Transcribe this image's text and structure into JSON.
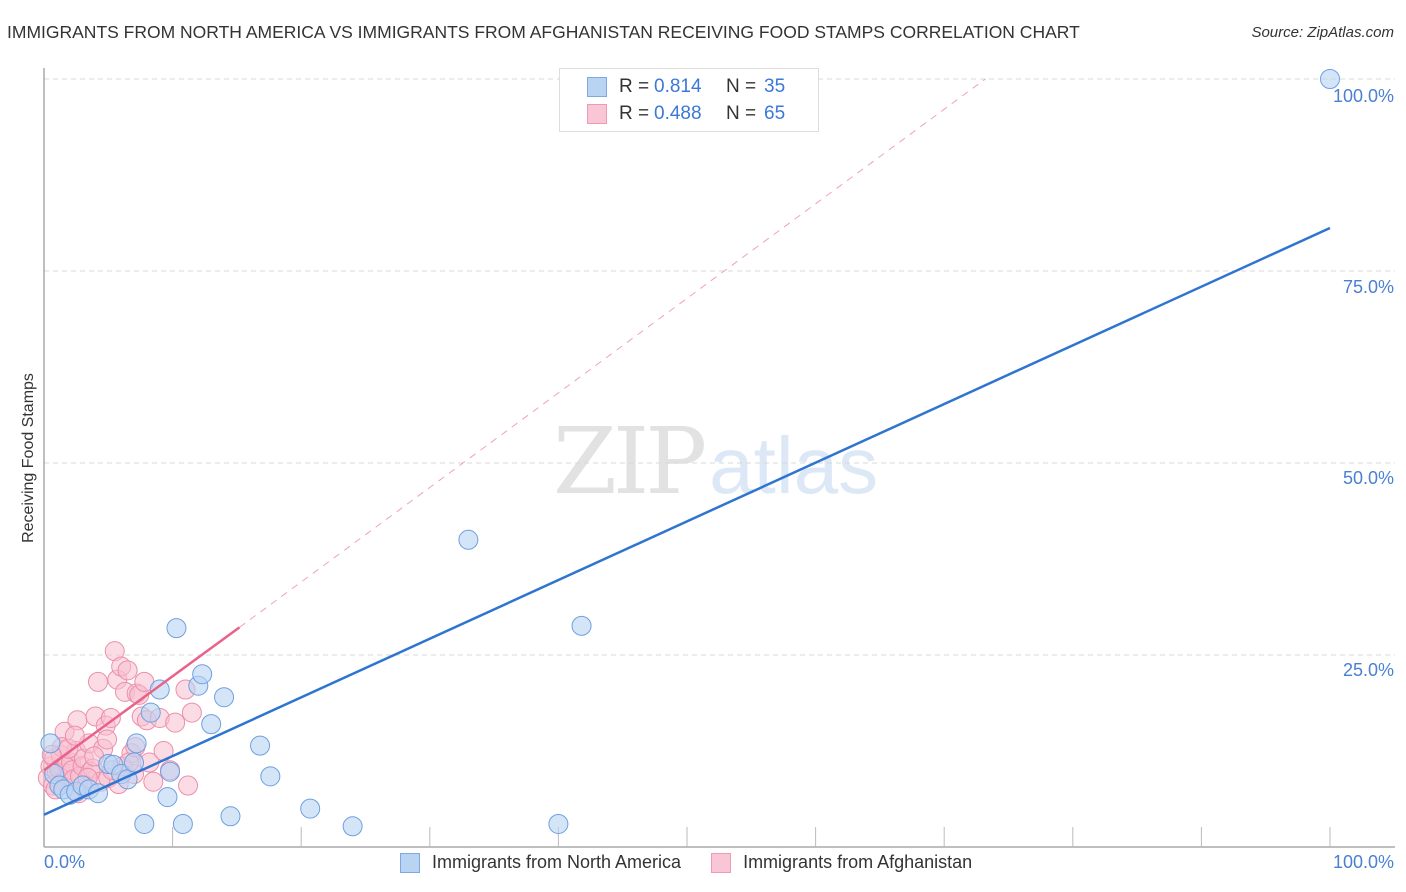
{
  "header": {
    "title": "IMMIGRANTS FROM NORTH AMERICA VS IMMIGRANTS FROM AFGHANISTAN RECEIVING FOOD STAMPS CORRELATION CHART",
    "source": "Source: ZipAtlas.com"
  },
  "watermark": {
    "zip": "ZIP",
    "atlas": "atlas"
  },
  "axes": {
    "ylabel": "Receiving Food Stamps",
    "y_ticks": [
      "100.0%",
      "75.0%",
      "50.0%",
      "25.0%"
    ],
    "x_ticks": [
      "0.0%",
      "100.0%"
    ]
  },
  "legend": {
    "series": [
      {
        "r_label": "R =",
        "r_value": "0.814",
        "n_label": "N =",
        "n_value": "35",
        "color": "#a8c8f0"
      },
      {
        "r_label": "R =",
        "r_value": "0.488",
        "n_label": "N =",
        "n_value": "65",
        "color": "#f7b8cb"
      }
    ]
  },
  "bottom_legend": [
    {
      "label": "Immigrants from North America",
      "color": "#a8c8f0"
    },
    {
      "label": "Immigrants from Afghanistan",
      "color": "#f7b8cb"
    }
  ],
  "colors": {
    "blue_fill": "#b9d3f3",
    "blue_stroke": "#6f9fe0",
    "blue_line": "#2f74d0",
    "pink_fill": "#f7bfd0",
    "pink_stroke": "#ec8fab",
    "pink_line": "#e8628a",
    "grid": "#d8d8d8",
    "tick_text": "#4a7fd4"
  },
  "chart_data": {
    "type": "scatter",
    "title": "IMMIGRANTS FROM NORTH AMERICA VS IMMIGRANTS FROM AFGHANISTAN RECEIVING FOOD STAMPS CORRELATION CHART",
    "xlabel": "",
    "ylabel": "Receiving Food Stamps",
    "xlim": [
      0,
      100
    ],
    "ylim": [
      0,
      100
    ],
    "x_tick_labels": [
      "0.0%",
      "100.0%"
    ],
    "y_tick_labels": [
      "25.0%",
      "50.0%",
      "75.0%",
      "100.0%"
    ],
    "grid": true,
    "legend_position": "top-center",
    "series": [
      {
        "name": "Immigrants from North America",
        "r": 0.814,
        "n": 35,
        "points": [
          [
            0.5,
            13.5
          ],
          [
            0.8,
            9.5
          ],
          [
            1.2,
            8.0
          ],
          [
            1.5,
            7.5
          ],
          [
            2.0,
            6.8
          ],
          [
            2.5,
            7.2
          ],
          [
            3.0,
            8.0
          ],
          [
            3.5,
            7.5
          ],
          [
            4.2,
            7.0
          ],
          [
            5.0,
            10.8
          ],
          [
            5.4,
            10.7
          ],
          [
            6.0,
            9.5
          ],
          [
            6.5,
            8.8
          ],
          [
            7.0,
            11.0
          ],
          [
            7.2,
            13.5
          ],
          [
            7.8,
            3.0
          ],
          [
            8.3,
            17.5
          ],
          [
            9.0,
            20.5
          ],
          [
            9.6,
            6.5
          ],
          [
            9.8,
            9.8
          ],
          [
            10.3,
            28.5
          ],
          [
            10.8,
            3.0
          ],
          [
            12.0,
            21.0
          ],
          [
            12.3,
            22.5
          ],
          [
            13.0,
            16.0
          ],
          [
            14.0,
            19.5
          ],
          [
            14.5,
            4.0
          ],
          [
            16.8,
            13.2
          ],
          [
            17.6,
            9.2
          ],
          [
            20.7,
            5.0
          ],
          [
            24.0,
            2.7
          ],
          [
            33.0,
            40.0
          ],
          [
            40.0,
            3.0
          ],
          [
            41.8,
            28.8
          ],
          [
            100.0,
            100.0
          ]
        ],
        "trendline": {
          "x": [
            0,
            100
          ],
          "y": [
            4.2,
            80.6
          ]
        }
      },
      {
        "name": "Immigrants from Afghanistan",
        "r": 0.488,
        "n": 65,
        "points": [
          [
            0.3,
            9.0
          ],
          [
            0.5,
            10.5
          ],
          [
            0.7,
            8.0
          ],
          [
            0.8,
            11.5
          ],
          [
            1.0,
            9.8
          ],
          [
            1.2,
            10.2
          ],
          [
            1.3,
            12.0
          ],
          [
            1.5,
            8.5
          ],
          [
            1.6,
            15.0
          ],
          [
            1.8,
            10.8
          ],
          [
            2.0,
            9.5
          ],
          [
            2.1,
            11.0
          ],
          [
            2.2,
            10.0
          ],
          [
            2.3,
            8.8
          ],
          [
            2.5,
            12.5
          ],
          [
            2.6,
            16.5
          ],
          [
            2.8,
            9.2
          ],
          [
            3.0,
            10.5
          ],
          [
            3.1,
            11.5
          ],
          [
            3.3,
            7.8
          ],
          [
            3.5,
            13.5
          ],
          [
            3.6,
            9.8
          ],
          [
            3.8,
            10.2
          ],
          [
            4.0,
            17.0
          ],
          [
            4.2,
            21.5
          ],
          [
            4.4,
            8.5
          ],
          [
            4.6,
            12.8
          ],
          [
            4.8,
            15.8
          ],
          [
            5.0,
            9.0
          ],
          [
            5.2,
            16.8
          ],
          [
            5.5,
            25.5
          ],
          [
            5.7,
            21.8
          ],
          [
            6.0,
            23.5
          ],
          [
            6.1,
            10.5
          ],
          [
            6.3,
            20.2
          ],
          [
            6.5,
            23.0
          ],
          [
            6.8,
            12.2
          ],
          [
            7.0,
            9.5
          ],
          [
            7.2,
            20.0
          ],
          [
            7.4,
            19.8
          ],
          [
            7.6,
            17.0
          ],
          [
            7.8,
            21.5
          ],
          [
            8.0,
            16.5
          ],
          [
            8.2,
            11.0
          ],
          [
            8.5,
            8.5
          ],
          [
            9.0,
            16.8
          ],
          [
            9.3,
            12.5
          ],
          [
            9.8,
            10.0
          ],
          [
            10.2,
            16.2
          ],
          [
            11.0,
            20.5
          ],
          [
            11.2,
            8.0
          ],
          [
            11.5,
            17.5
          ],
          [
            1.4,
            13.0
          ],
          [
            0.9,
            7.5
          ],
          [
            2.7,
            7.0
          ],
          [
            3.9,
            11.8
          ],
          [
            4.9,
            14.0
          ],
          [
            5.8,
            8.2
          ],
          [
            6.6,
            11.0
          ],
          [
            1.9,
            12.8
          ],
          [
            2.4,
            14.5
          ],
          [
            3.4,
            9.0
          ],
          [
            0.6,
            12.0
          ],
          [
            5.3,
            10.0
          ],
          [
            7.1,
            13.0
          ]
        ],
        "trendline": {
          "x": [
            0,
            15.2
          ],
          "y": [
            10.0,
            28.6
          ]
        },
        "trendline_extension_dashed": {
          "x": [
            15.2,
            73.2
          ],
          "y": [
            28.6,
            100.0
          ]
        }
      }
    ]
  }
}
